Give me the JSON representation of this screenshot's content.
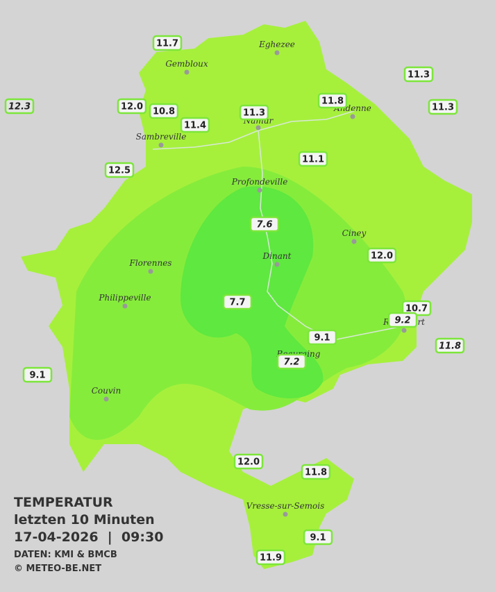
{
  "header": {
    "title": "TEMPERATUR",
    "subtitle": "letzten 10 Minuten",
    "datetime": "17-04-2026  |  09:30",
    "source": "DATEN: KMI & BMCB",
    "credit": "© METEO-BE.NET"
  },
  "cities": [
    "Eghezee",
    "Gembloux",
    "Andenne",
    "Namur",
    "Sambreville",
    "Profondeville",
    "Ciney",
    "Dinant",
    "Florennes",
    "Philippeville",
    "Rochefort",
    "Beauraing",
    "Couvin",
    "Vresse-sur-Semois"
  ],
  "stations": [
    {
      "label": "11.7"
    },
    {
      "label": "11.3"
    },
    {
      "label": "12.3",
      "italic": true
    },
    {
      "label": "12.0"
    },
    {
      "label": "10.8"
    },
    {
      "label": "11.8"
    },
    {
      "label": "11.3"
    },
    {
      "label": "11.3"
    },
    {
      "label": "11.4"
    },
    {
      "label": "11.1"
    },
    {
      "label": "12.5"
    },
    {
      "label": "7.6",
      "italic": true
    },
    {
      "label": "12.0"
    },
    {
      "label": "10.7"
    },
    {
      "label": "9.2",
      "italic": true
    },
    {
      "label": "7.7"
    },
    {
      "label": "9.1"
    },
    {
      "label": "11.8",
      "italic": true
    },
    {
      "label": "7.2",
      "italic": true
    },
    {
      "label": "9.1"
    },
    {
      "label": "12.0"
    },
    {
      "label": "11.8"
    },
    {
      "label": "9.1"
    },
    {
      "label": "11.9"
    }
  ]
}
